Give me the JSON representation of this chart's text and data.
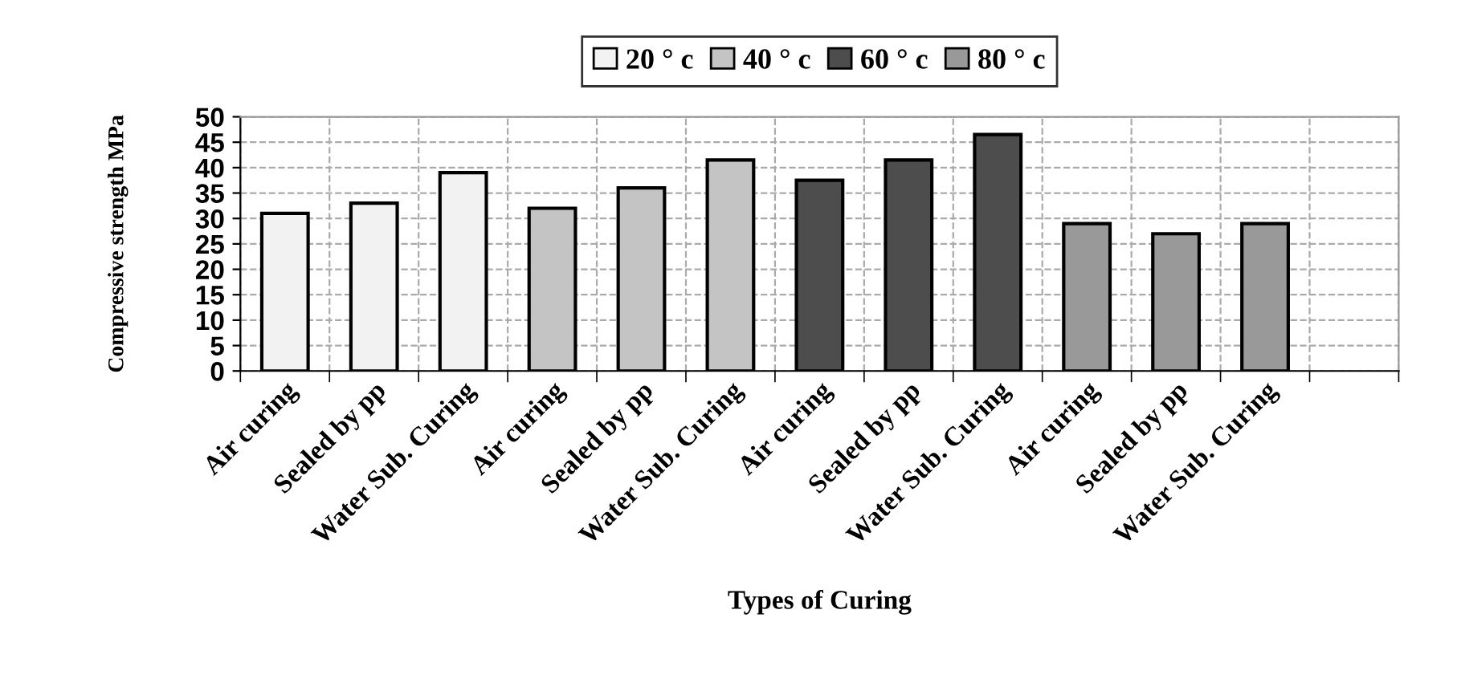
{
  "chart_data": {
    "type": "bar",
    "xlabel": "Types of Curing",
    "ylabel": "Compressive strength MPa",
    "categories": [
      "Air curing",
      "Sealed by pp",
      "Water Sub. Curing",
      "Air curing",
      "Sealed by pp",
      "Water Sub. Curing",
      "Air curing",
      "Sealed by pp",
      "Water Sub. Curing",
      "Air curing",
      "Sealed by pp",
      "Water Sub. Curing",
      null
    ],
    "series": [
      {
        "name": "20 ° c",
        "color": "#f2f2f2",
        "values": [
          31,
          33,
          39,
          null,
          null,
          null,
          null,
          null,
          null,
          null,
          null,
          null,
          null
        ]
      },
      {
        "name": "40 ° c",
        "color": "#c4c4c4",
        "values": [
          null,
          null,
          null,
          32,
          36,
          41.5,
          null,
          null,
          null,
          null,
          null,
          null,
          null
        ]
      },
      {
        "name": "60 ° c",
        "color": "#4d4d4d",
        "values": [
          null,
          null,
          null,
          null,
          null,
          null,
          37.5,
          41.5,
          46.5,
          null,
          null,
          null,
          null
        ]
      },
      {
        "name": "80 ° c",
        "color": "#999999",
        "values": [
          null,
          null,
          null,
          null,
          null,
          null,
          null,
          null,
          null,
          29,
          27,
          29,
          null
        ]
      }
    ],
    "ylim": [
      0,
      50
    ],
    "yticks": [
      0,
      5,
      10,
      15,
      20,
      25,
      30,
      35,
      40,
      45,
      50
    ],
    "grid": true,
    "legend": "top"
  }
}
